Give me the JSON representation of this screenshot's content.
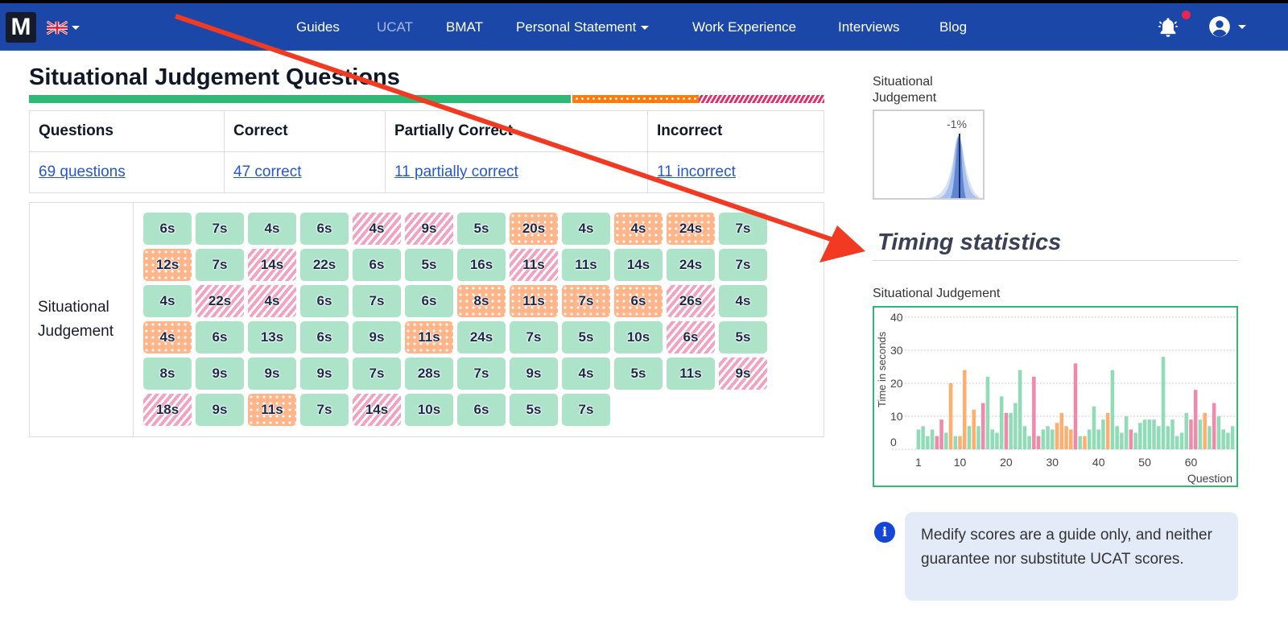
{
  "nav": {
    "logo": "M",
    "items": [
      {
        "label": "Guides",
        "active": false
      },
      {
        "label": "UCAT",
        "active": true
      },
      {
        "label": "BMAT",
        "active": false
      },
      {
        "label": "Personal Statement",
        "dropdown": true
      },
      {
        "label": "Work Experience",
        "active": false
      },
      {
        "label": "Interviews",
        "active": false
      },
      {
        "label": "Blog",
        "active": false
      }
    ],
    "icons": [
      "uk-flag-icon",
      "bell-icon",
      "user-icon"
    ]
  },
  "page": {
    "title": "Situational Judgement Questions",
    "progress": {
      "correct": 47,
      "partial": 11,
      "incorrect": 11,
      "total": 69
    }
  },
  "summary": {
    "headers": [
      "Questions",
      "Correct",
      "Partially Correct",
      "Incorrect"
    ],
    "values": [
      "69 questions",
      "47 correct",
      "11 partially correct",
      "11 incorrect"
    ]
  },
  "grid": {
    "label_line1": "Situational",
    "label_line2": "Judgement",
    "tiles": [
      [
        "6s",
        "c"
      ],
      [
        "7s",
        "c"
      ],
      [
        "4s",
        "c"
      ],
      [
        "6s",
        "c"
      ],
      [
        "4s",
        "i"
      ],
      [
        "9s",
        "i"
      ],
      [
        "5s",
        "c"
      ],
      [
        "20s",
        "p"
      ],
      [
        "4s",
        "c"
      ],
      [
        "4s",
        "p"
      ],
      [
        "24s",
        "p"
      ],
      [
        "7s",
        "c"
      ],
      [
        "12s",
        "p"
      ],
      [
        "7s",
        "c"
      ],
      [
        "14s",
        "i"
      ],
      [
        "22s",
        "c"
      ],
      [
        "6s",
        "c"
      ],
      [
        "5s",
        "c"
      ],
      [
        "16s",
        "c"
      ],
      [
        "11s",
        "i"
      ],
      [
        "11s",
        "c"
      ],
      [
        "14s",
        "c"
      ],
      [
        "24s",
        "c"
      ],
      [
        "7s",
        "c"
      ],
      [
        "4s",
        "c"
      ],
      [
        "22s",
        "i"
      ],
      [
        "4s",
        "i"
      ],
      [
        "6s",
        "c"
      ],
      [
        "7s",
        "c"
      ],
      [
        "6s",
        "c"
      ],
      [
        "8s",
        "p"
      ],
      [
        "11s",
        "p"
      ],
      [
        "7s",
        "p"
      ],
      [
        "6s",
        "p"
      ],
      [
        "26s",
        "i"
      ],
      [
        "4s",
        "c"
      ],
      [
        "4s",
        "p"
      ],
      [
        "6s",
        "c"
      ],
      [
        "13s",
        "c"
      ],
      [
        "6s",
        "c"
      ],
      [
        "9s",
        "c"
      ],
      [
        "11s",
        "p"
      ],
      [
        "24s",
        "c"
      ],
      [
        "7s",
        "c"
      ],
      [
        "5s",
        "c"
      ],
      [
        "10s",
        "c"
      ],
      [
        "6s",
        "i"
      ],
      [
        "5s",
        "c"
      ],
      [
        "8s",
        "c"
      ],
      [
        "9s",
        "c"
      ],
      [
        "9s",
        "c"
      ],
      [
        "9s",
        "c"
      ],
      [
        "7s",
        "c"
      ],
      [
        "28s",
        "c"
      ],
      [
        "7s",
        "c"
      ],
      [
        "9s",
        "c"
      ],
      [
        "4s",
        "c"
      ],
      [
        "5s",
        "c"
      ],
      [
        "11s",
        "c"
      ],
      [
        "9s",
        "i"
      ],
      [
        "18s",
        "i"
      ],
      [
        "9s",
        "c"
      ],
      [
        "11s",
        "p"
      ],
      [
        "7s",
        "c"
      ],
      [
        "14s",
        "i"
      ],
      [
        "10s",
        "c"
      ],
      [
        "6s",
        "c"
      ],
      [
        "5s",
        "c"
      ],
      [
        "7s",
        "c"
      ]
    ]
  },
  "sidebar": {
    "score_label": "Situational Judgement",
    "score_pct": "-1%",
    "timing_title": "Timing statistics",
    "chart_label": "Situational Judgement",
    "info_text": "Medify scores are a guide only, and neither guarantee nor substitute UCAT scores."
  },
  "colors": {
    "nav": "#1a47a8",
    "correct": "#2fb876",
    "partial": "#ff7a10",
    "incorrect": "#e0306a",
    "bar_correct": "#8fdcb6",
    "bar_partial": "#ffae70",
    "bar_incorrect": "#ef8aaa"
  },
  "chart_data": {
    "type": "bar",
    "title": "Situational Judgement",
    "xlabel": "Question",
    "ylabel": "Time in seconds",
    "ylim": [
      0,
      40
    ],
    "yticks": [
      0,
      10,
      20,
      30,
      40
    ],
    "xticks": [
      1,
      10,
      20,
      30,
      40,
      50,
      60
    ],
    "grid": true,
    "x": [
      1,
      2,
      3,
      4,
      5,
      6,
      7,
      8,
      9,
      10,
      11,
      12,
      13,
      14,
      15,
      16,
      17,
      18,
      19,
      20,
      21,
      22,
      23,
      24,
      25,
      26,
      27,
      28,
      29,
      30,
      31,
      32,
      33,
      34,
      35,
      36,
      37,
      38,
      39,
      40,
      41,
      42,
      43,
      44,
      45,
      46,
      47,
      48,
      49,
      50,
      51,
      52,
      53,
      54,
      55,
      56,
      57,
      58,
      59,
      60,
      61,
      62,
      63,
      64,
      65,
      66,
      67,
      68,
      69
    ],
    "values": [
      6,
      7,
      4,
      6,
      4,
      9,
      5,
      20,
      4,
      4,
      24,
      7,
      12,
      7,
      14,
      22,
      6,
      5,
      16,
      11,
      11,
      14,
      24,
      7,
      4,
      22,
      4,
      6,
      7,
      6,
      8,
      11,
      7,
      6,
      26,
      4,
      4,
      6,
      13,
      6,
      9,
      11,
      24,
      7,
      5,
      10,
      6,
      5,
      8,
      9,
      9,
      9,
      7,
      28,
      7,
      9,
      4,
      5,
      11,
      9,
      18,
      9,
      11,
      7,
      14,
      10,
      6,
      5,
      7
    ],
    "status": [
      "c",
      "c",
      "c",
      "c",
      "i",
      "i",
      "c",
      "p",
      "c",
      "p",
      "p",
      "c",
      "p",
      "c",
      "i",
      "c",
      "c",
      "c",
      "c",
      "i",
      "c",
      "c",
      "c",
      "c",
      "c",
      "i",
      "i",
      "c",
      "c",
      "c",
      "p",
      "p",
      "p",
      "p",
      "i",
      "c",
      "p",
      "c",
      "c",
      "c",
      "c",
      "p",
      "c",
      "c",
      "c",
      "c",
      "i",
      "c",
      "c",
      "c",
      "c",
      "c",
      "c",
      "c",
      "c",
      "c",
      "c",
      "c",
      "c",
      "i",
      "i",
      "c",
      "p",
      "c",
      "i",
      "c",
      "c",
      "c",
      "c"
    ],
    "legend": {
      "c": "Correct",
      "p": "Partially correct",
      "i": "Incorrect"
    }
  }
}
